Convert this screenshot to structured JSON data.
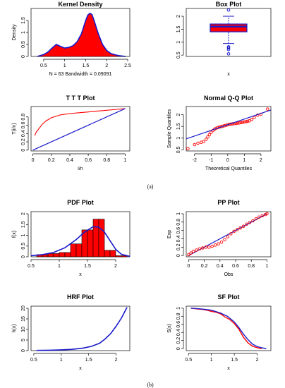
{
  "figure_labels": {
    "a": "(a)",
    "b": "(b)"
  },
  "colors": {
    "red": "#ff0000",
    "blue": "#1a1acc"
  },
  "chart_data": [
    {
      "id": "kd",
      "type": "area",
      "title": "Kernel Density",
      "xlabel": "N = 63   Bandwidth = 0.09091",
      "ylabel": "Density",
      "xlim": [
        0.2,
        2.55
      ],
      "ylim": [
        0,
        2.0
      ],
      "xticks": [
        0.5,
        1.0,
        1.5,
        2.0,
        2.5
      ],
      "yticks": [
        0.0,
        0.5,
        1.0,
        1.5
      ],
      "x": [
        0.35,
        0.5,
        0.6,
        0.7,
        0.8,
        0.9,
        1.0,
        1.1,
        1.2,
        1.3,
        1.4,
        1.5,
        1.55,
        1.6,
        1.65,
        1.7,
        1.8,
        1.9,
        2.0,
        2.1,
        2.2,
        2.3,
        2.45
      ],
      "y": [
        0.0,
        0.08,
        0.18,
        0.35,
        0.5,
        0.42,
        0.35,
        0.38,
        0.45,
        0.62,
        0.95,
        1.5,
        1.72,
        1.8,
        1.75,
        1.5,
        0.95,
        0.5,
        0.25,
        0.12,
        0.07,
        0.03,
        0.0
      ],
      "grid": false
    },
    {
      "id": "box",
      "type": "box",
      "title": "Box Plot",
      "xlabel": "x",
      "ylabel": "",
      "ylim": [
        0.45,
        2.3
      ],
      "yticks": [
        0.5,
        1.0,
        1.5,
        2.0
      ],
      "whisker_low": 0.95,
      "q1": 1.4,
      "median": 1.6,
      "q3": 1.7,
      "whisker_high": 2.0,
      "outliers": [
        0.55,
        0.72,
        0.78,
        0.82,
        2.24
      ]
    },
    {
      "id": "ttt",
      "type": "line",
      "title": "T T T Plot",
      "xlabel": "i/n",
      "ylabel": "T(i/n)",
      "xlim": [
        -0.02,
        1.05
      ],
      "ylim": [
        -0.02,
        1.05
      ],
      "xticks": [
        0.0,
        0.2,
        0.4,
        0.6,
        0.8,
        1.0
      ],
      "yticks": [
        0.0,
        0.2,
        0.4,
        0.6,
        0.8
      ],
      "series": [
        {
          "x": [
            0.02,
            0.04,
            0.06,
            0.1,
            0.14,
            0.2,
            0.3,
            0.4,
            0.5,
            0.6,
            0.7,
            0.8,
            0.9,
            1.0
          ],
          "values": [
            0.35,
            0.45,
            0.5,
            0.62,
            0.7,
            0.78,
            0.85,
            0.88,
            0.9,
            0.92,
            0.94,
            0.96,
            0.98,
            1.0
          ]
        },
        {
          "x": [
            0.0,
            1.0
          ],
          "values": [
            0.0,
            1.0
          ]
        }
      ]
    },
    {
      "id": "qq",
      "type": "scatter",
      "title": "Normal Q-Q Plot",
      "xlabel": "Theoretical Quantiles",
      "ylabel": "Sample Quantiles",
      "xlim": [
        -2.5,
        2.6
      ],
      "ylim": [
        0.45,
        2.35
      ],
      "xticks": [
        -2,
        -1,
        0,
        1,
        2
      ],
      "yticks": [
        0.5,
        1.0,
        1.5,
        2.0
      ],
      "x": [
        -2.4,
        -2.0,
        -1.8,
        -1.6,
        -1.45,
        -1.3,
        -1.2,
        -1.1,
        -1.0,
        -0.9,
        -0.8,
        -0.7,
        -0.6,
        -0.5,
        -0.4,
        -0.3,
        -0.2,
        -0.1,
        0.0,
        0.1,
        0.2,
        0.3,
        0.4,
        0.5,
        0.6,
        0.7,
        0.8,
        0.9,
        1.0,
        1.1,
        1.2,
        1.3,
        1.45,
        1.6,
        1.8,
        2.0,
        2.4
      ],
      "y": [
        0.55,
        0.72,
        0.78,
        0.82,
        0.85,
        0.95,
        1.05,
        1.15,
        1.25,
        1.32,
        1.38,
        1.42,
        1.45,
        1.47,
        1.49,
        1.51,
        1.53,
        1.55,
        1.57,
        1.59,
        1.6,
        1.61,
        1.62,
        1.63,
        1.64,
        1.65,
        1.66,
        1.68,
        1.69,
        1.7,
        1.72,
        1.74,
        1.8,
        1.88,
        1.98,
        2.02,
        2.24
      ],
      "line": {
        "x": [
          -2.5,
          2.6
        ],
        "y": [
          0.97,
          2.2
        ]
      }
    },
    {
      "id": "pdf",
      "type": "bar",
      "title": "PDF Plot",
      "xlabel": "x",
      "ylabel": "f(x)",
      "xlim": [
        0.5,
        2.25
      ],
      "ylim": [
        0,
        2.1
      ],
      "xticks": [
        0.5,
        1.0,
        1.5,
        2.0
      ],
      "yticks": [
        0.0,
        0.5,
        1.0,
        1.5,
        2.0
      ],
      "bins": [
        [
          0.6,
          0.7
        ],
        [
          0.7,
          0.8
        ],
        [
          0.8,
          0.9
        ],
        [
          0.9,
          1.0
        ],
        [
          1.0,
          1.1
        ],
        [
          1.1,
          1.2
        ],
        [
          1.2,
          1.3
        ],
        [
          1.3,
          1.4
        ],
        [
          1.4,
          1.5
        ],
        [
          1.5,
          1.6
        ],
        [
          1.6,
          1.7
        ],
        [
          1.7,
          1.8
        ],
        [
          1.8,
          1.9
        ],
        [
          1.9,
          2.0
        ],
        [
          2.0,
          2.1
        ],
        [
          2.1,
          2.2
        ]
      ],
      "values": [
        0.1,
        0.1,
        0.15,
        0.15,
        0.2,
        0.2,
        0.6,
        0.6,
        1.25,
        1.25,
        1.75,
        1.75,
        0.3,
        0.3,
        0.05,
        0.05
      ],
      "curve": {
        "x": [
          0.5,
          0.7,
          0.9,
          1.1,
          1.3,
          1.45,
          1.6,
          1.7,
          1.8,
          1.9,
          2.0,
          2.1,
          2.25
        ],
        "y": [
          0.05,
          0.1,
          0.2,
          0.42,
          0.8,
          1.15,
          1.4,
          1.38,
          1.15,
          0.75,
          0.35,
          0.12,
          0.02
        ]
      }
    },
    {
      "id": "pp",
      "type": "scatter",
      "title": "PP Plot",
      "xlabel": "Obs",
      "ylabel": "Exp",
      "xlim": [
        -0.03,
        1.05
      ],
      "ylim": [
        -0.03,
        1.05
      ],
      "xticks": [
        0.0,
        0.2,
        0.4,
        0.6,
        0.8,
        1.0
      ],
      "yticks": [
        0.0,
        0.2,
        0.4,
        0.6,
        0.8,
        1.0
      ],
      "x": [
        0.0,
        0.03,
        0.06,
        0.1,
        0.14,
        0.18,
        0.22,
        0.26,
        0.3,
        0.34,
        0.38,
        0.42,
        0.46,
        0.5,
        0.54,
        0.58,
        0.62,
        0.66,
        0.7,
        0.74,
        0.78,
        0.82,
        0.86,
        0.9,
        0.94,
        0.98,
        1.0
      ],
      "y": [
        0.02,
        0.06,
        0.1,
        0.13,
        0.16,
        0.18,
        0.2,
        0.2,
        0.22,
        0.25,
        0.28,
        0.32,
        0.38,
        0.45,
        0.52,
        0.58,
        0.62,
        0.66,
        0.7,
        0.75,
        0.79,
        0.83,
        0.88,
        0.92,
        0.95,
        0.98,
        1.0
      ],
      "line": {
        "x": [
          0.0,
          1.0
        ],
        "y": [
          0.0,
          1.0
        ]
      }
    },
    {
      "id": "hrf",
      "type": "line",
      "title": "HRF Plot",
      "xlabel": "x",
      "ylabel": "h(x)",
      "xlim": [
        0.45,
        2.25
      ],
      "ylim": [
        0,
        21
      ],
      "xticks": [
        0.5,
        1.0,
        1.5,
        2.0
      ],
      "yticks": [
        0,
        5,
        10,
        15,
        20
      ],
      "x": [
        0.55,
        0.8,
        1.0,
        1.2,
        1.4,
        1.55,
        1.7,
        1.8,
        1.9,
        2.0,
        2.1,
        2.2
      ],
      "y": [
        0.1,
        0.2,
        0.35,
        0.6,
        1.2,
        2.0,
        3.5,
        5.5,
        8.0,
        11.5,
        15.5,
        20.5
      ]
    },
    {
      "id": "sf",
      "type": "line",
      "title": "SF Plot",
      "xlabel": "x",
      "ylabel": "S(x)",
      "xlim": [
        0.45,
        2.3
      ],
      "ylim": [
        -0.05,
        1.05
      ],
      "xticks": [
        0.5,
        1.0,
        1.5,
        2.0
      ],
      "yticks": [
        0.0,
        0.2,
        0.4,
        0.6,
        0.8,
        1.0
      ],
      "series": [
        {
          "x": [
            0.55,
            0.7,
            0.8,
            0.9,
            1.0,
            1.1,
            1.2,
            1.3,
            1.4,
            1.5,
            1.6,
            1.7,
            1.8,
            1.9,
            2.0,
            2.1
          ],
          "values": [
            1.0,
            0.98,
            0.97,
            0.95,
            0.92,
            0.9,
            0.86,
            0.78,
            0.72,
            0.62,
            0.48,
            0.28,
            0.14,
            0.06,
            0.02,
            0.0
          ]
        },
        {
          "x": [
            0.55,
            0.8,
            1.0,
            1.2,
            1.35,
            1.5,
            1.6,
            1.7,
            1.8,
            1.9,
            2.0,
            2.1,
            2.2
          ],
          "values": [
            1.0,
            0.98,
            0.95,
            0.88,
            0.8,
            0.66,
            0.52,
            0.36,
            0.22,
            0.11,
            0.05,
            0.02,
            0.0
          ]
        }
      ]
    }
  ]
}
